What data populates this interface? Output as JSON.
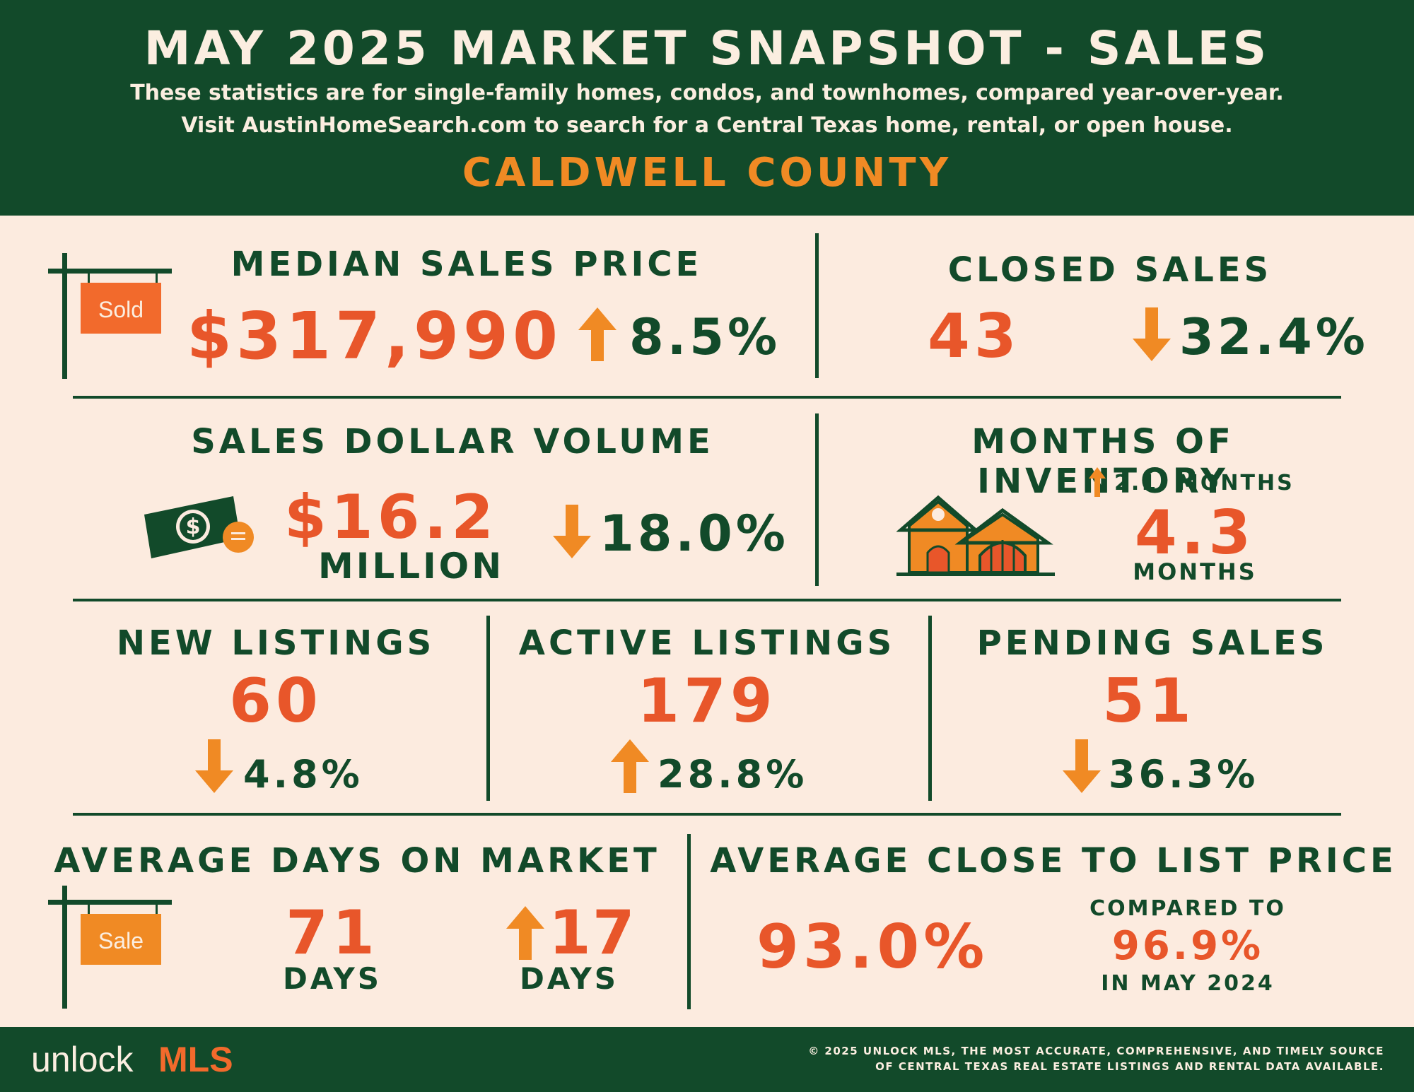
{
  "header": {
    "title": "MAY 2025 MARKET SNAPSHOT - SALES",
    "subtitle_1": "These statistics are for single-family homes, condos, and townhomes, compared year-over-year.",
    "subtitle_2": "Visit AustinHomeSearch.com to search for a Central Texas home, rental, or open house.",
    "county": "CALDWELL COUNTY"
  },
  "median_sales_price": {
    "label": "MEDIAN SALES PRICE",
    "sign_text": "Sold",
    "value": "$317,990",
    "change": "8.5%",
    "direction": "up"
  },
  "closed_sales": {
    "label": "CLOSED SALES",
    "value": "43",
    "change": "32.4%",
    "direction": "down"
  },
  "sales_dollar_volume": {
    "label": "SALES DOLLAR VOLUME",
    "value": "$16.2",
    "unit": "MILLION",
    "change": "18.0%",
    "direction": "down",
    "bill_symbol": "$"
  },
  "months_of_inventory": {
    "label": "MONTHS OF INVENTORY",
    "change": "2.1  MONTHS",
    "direction": "up",
    "value": "4.3",
    "unit": "MONTHS"
  },
  "new_listings": {
    "label": "NEW LISTINGS",
    "value": "60",
    "change": "4.8%",
    "direction": "down"
  },
  "active_listings": {
    "label": "ACTIVE LISTINGS",
    "value": "179",
    "change": "28.8%",
    "direction": "up"
  },
  "pending_sales": {
    "label": "PENDING SALES",
    "value": "51",
    "change": "36.3%",
    "direction": "down"
  },
  "average_days_on_market": {
    "label": "AVERAGE DAYS ON MARKET",
    "sign_text": "Sale",
    "value": "71",
    "unit": "DAYS",
    "change": "17",
    "change_unit": "DAYS",
    "direction": "up"
  },
  "average_close_to_list": {
    "label": "AVERAGE CLOSE TO LIST PRICE",
    "value": "93.0%",
    "compared_label": "COMPARED TO",
    "compared_value": "96.9%",
    "compared_period": "IN MAY 2024"
  },
  "footer": {
    "logo_part_1": "unlock",
    "logo_part_2": "MLS",
    "copyright_1": "© 2025 UNLOCK MLS, THE MOST ACCURATE, COMPREHENSIVE, AND TIMELY SOURCE",
    "copyright_2": "OF CENTRAL TEXAS REAL ESTATE LISTINGS AND RENTAL DATA AVAILABLE."
  },
  "colors": {
    "dark_green": "#124a2a",
    "background": "#fcebdf",
    "value_red": "#e8562a",
    "accent_orange": "#f08a24"
  }
}
